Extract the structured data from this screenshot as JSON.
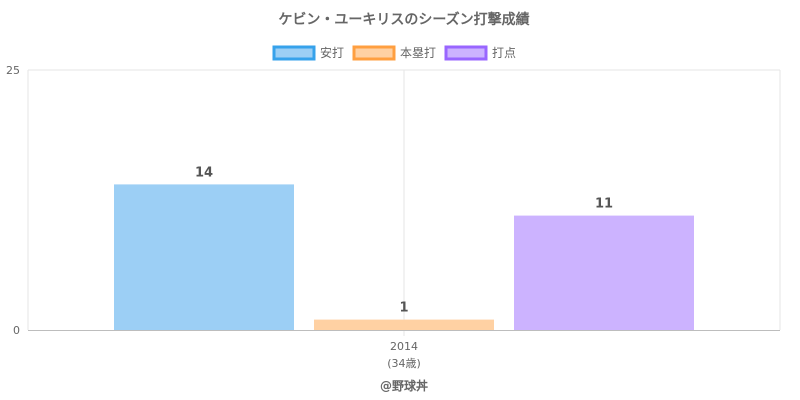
{
  "chart_data": {
    "type": "bar",
    "title": "ケビン・ユーキリスのシーズン打撃成績",
    "categories": [
      "2014"
    ],
    "category_sublabels": [
      "(34歳)"
    ],
    "series": [
      {
        "name": "安打",
        "values": [
          14
        ],
        "fill": "#9ccff5",
        "stroke": "#36a2eb"
      },
      {
        "name": "本塁打",
        "values": [
          1
        ],
        "fill": "#ffd1a3",
        "stroke": "#ff9f40"
      },
      {
        "name": "打点",
        "values": [
          11
        ],
        "fill": "#ccb3ff",
        "stroke": "#9966ff"
      }
    ],
    "ylim": [
      0,
      25
    ],
    "y_ticks": [
      "0",
      "25"
    ],
    "legend_position": "top",
    "grid": true
  },
  "credit": "@野球丼"
}
